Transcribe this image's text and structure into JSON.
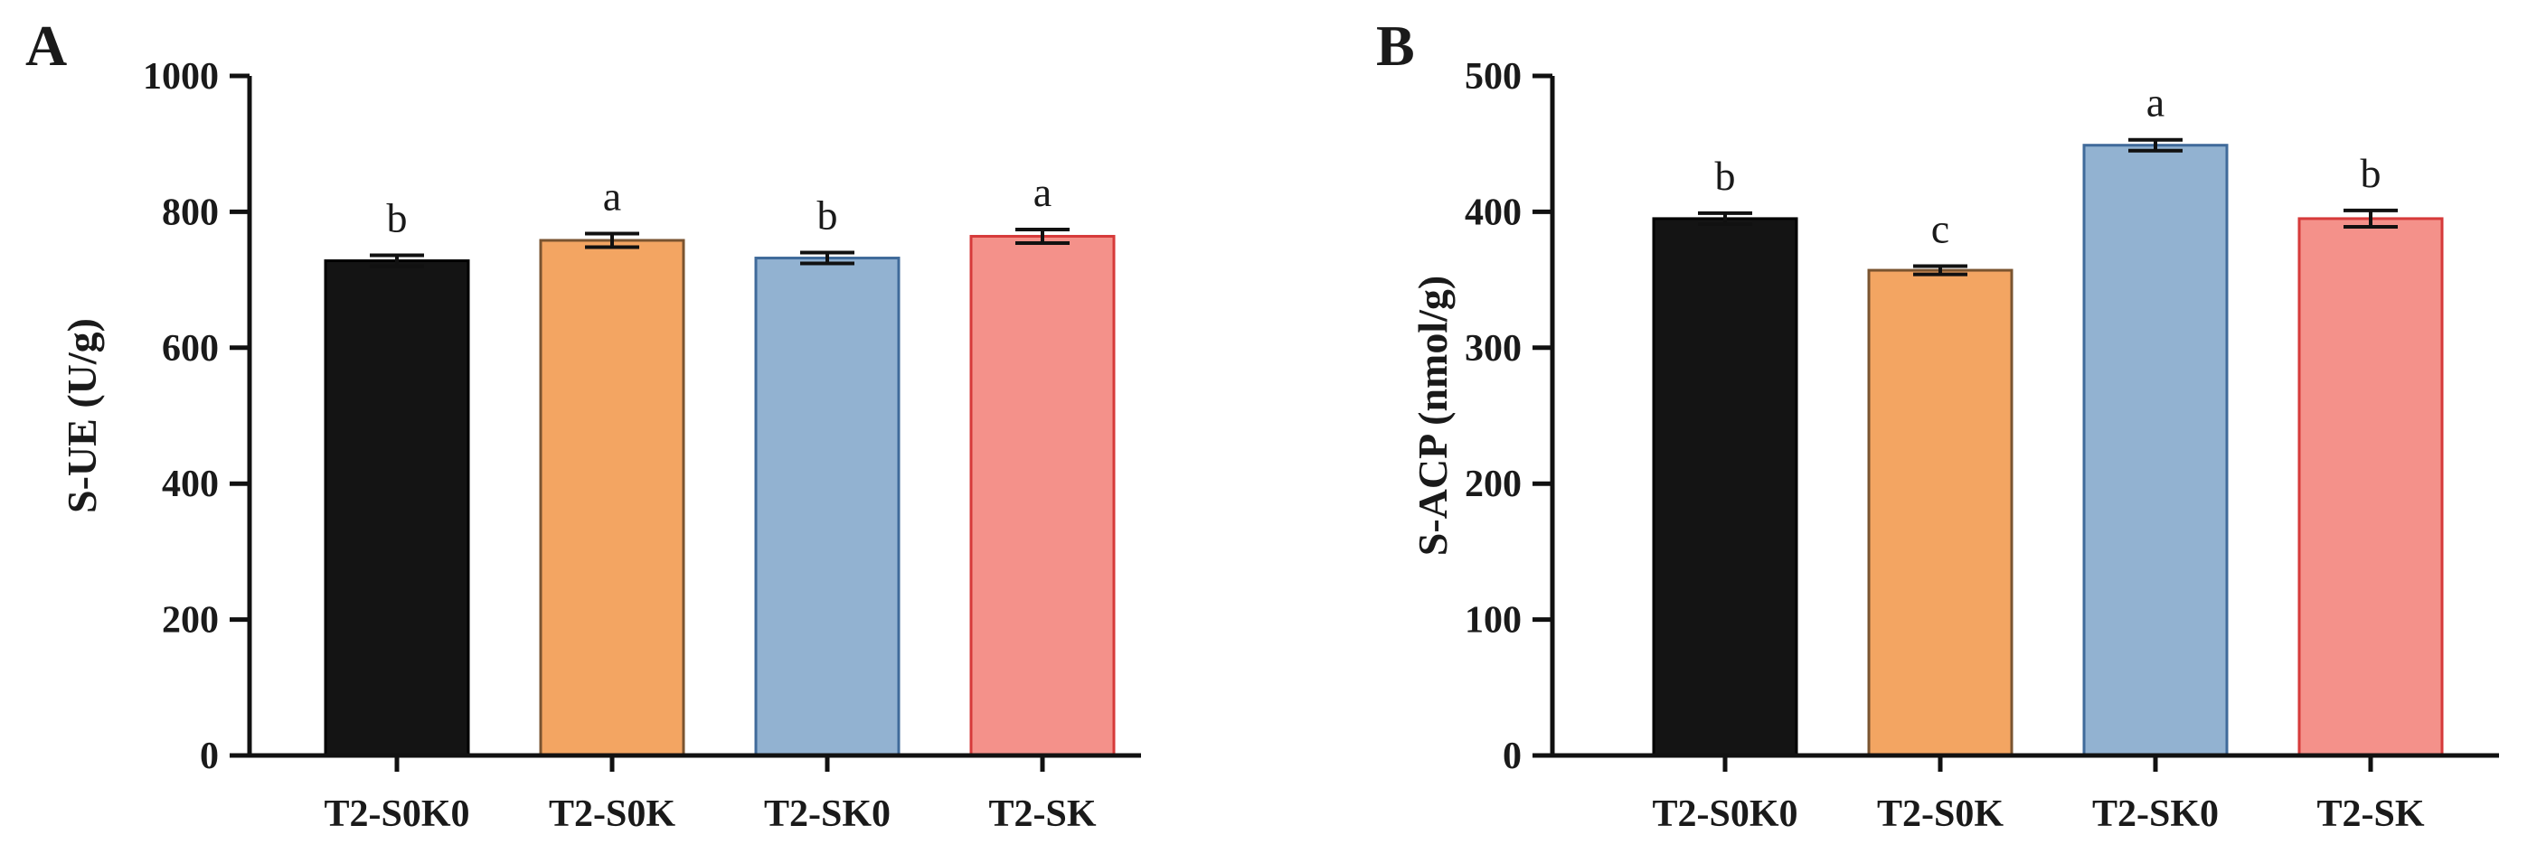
{
  "chart_data": [
    {
      "panel": "A",
      "type": "bar",
      "title": "",
      "xlabel": "",
      "ylabel": "S-UE (U/g)",
      "ylim": [
        0,
        1000
      ],
      "yticks": [
        0,
        200,
        400,
        600,
        800,
        1000
      ],
      "categories": [
        "T2-S0K0",
        "T2-S0K",
        "T2-SK0",
        "T2-SK"
      ],
      "values": [
        728,
        758,
        732,
        764
      ],
      "errors": [
        8,
        10,
        8,
        10
      ],
      "significance": [
        "b",
        "a",
        "b",
        "a"
      ],
      "colors": [
        "#141414",
        "#f3a562",
        "#92b2d1",
        "#f4918a"
      ],
      "edge_colors": [
        "#000000",
        "#7a5430",
        "#3f6a9a",
        "#d63a3a"
      ]
    },
    {
      "panel": "B",
      "type": "bar",
      "title": "",
      "xlabel": "",
      "ylabel": "S-ACP (nmol/g)",
      "ylim": [
        0,
        500
      ],
      "yticks": [
        0,
        100,
        200,
        300,
        400,
        500
      ],
      "categories": [
        "T2-S0K0",
        "T2-S0K",
        "T2-SK0",
        "T2-SK"
      ],
      "values": [
        395,
        357,
        449,
        395
      ],
      "errors": [
        4,
        3,
        4,
        6
      ],
      "significance": [
        "b",
        "c",
        "a",
        "b"
      ],
      "colors": [
        "#141414",
        "#f3a562",
        "#92b2d1",
        "#f4918a"
      ],
      "edge_colors": [
        "#000000",
        "#7a5430",
        "#3f6a9a",
        "#d63a3a"
      ]
    }
  ]
}
